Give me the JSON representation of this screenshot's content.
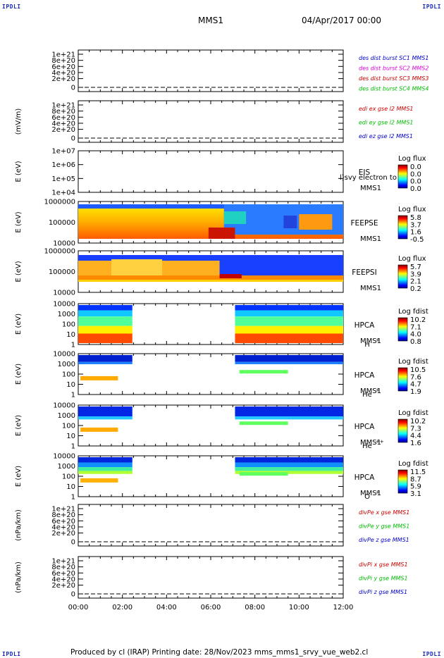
{
  "corners": {
    "tl": "IPDLI",
    "tr": "IPDLI",
    "bl": "IPDLI",
    "br": "IPDLI"
  },
  "header": {
    "spacecraft": "MMS1",
    "date": "04/Apr/2017 00:00"
  },
  "footer": "Produced by cl (IRAP)   Printing date: 28/Nov/2023   mms_mms1_srvy_vue_web2.cl",
  "chart_data": [
    {
      "type": "line",
      "panel": "des-dist-burst",
      "ylabel": "",
      "ytick_labels": [
        "1e+21",
        "8e+20",
        "6e+20",
        "4e+20",
        "2e+20",
        "0"
      ],
      "series": [
        {
          "name": "des dist burst SC1 MMS1",
          "color": "#0000cc"
        },
        {
          "name": "des dist burst SC2 MMS2",
          "color": "#dd00dd"
        },
        {
          "name": "des dist burst SC3 MMS3",
          "color": "#cc0000"
        },
        {
          "name": "des dist burst SC4 MMS4",
          "color": "#00bb00"
        }
      ]
    },
    {
      "type": "line",
      "panel": "edi",
      "ylabel": "(mV/m)",
      "ytick_labels": [
        "1e+21",
        "8e+20",
        "6e+20",
        "4e+20",
        "2e+20",
        "0"
      ],
      "series": [
        {
          "name": "edi ex gse l2 MMS1",
          "color": "#cc0000"
        },
        {
          "name": "edi ey gse l2 MMS1",
          "color": "#00bb00"
        },
        {
          "name": "edi ez gse l2 MMS1",
          "color": "#0000cc"
        }
      ]
    },
    {
      "type": "heatmap",
      "panel": "eis",
      "ylabel": "E (eV)",
      "ytick_labels": [
        "1e+07",
        "1e+06",
        "1e+05",
        "1e+04"
      ],
      "instrument": "EIS",
      "sub": "MMS1",
      "overlay": "l)svy electron to",
      "cbar_title": "Log flux",
      "cbar_ticks": [
        "0.0",
        "0.0",
        "0.0",
        "0.0"
      ]
    },
    {
      "type": "heatmap",
      "panel": "feepse",
      "ylabel": "E (eV)",
      "ytick_labels": [
        "1000000",
        "100000",
        "10000"
      ],
      "instrument": "FEEPSE",
      "sub": "MMS1",
      "cbar_title": "Log flux",
      "cbar_ticks": [
        "5.8",
        "3.7",
        "1.6",
        "-0.5"
      ]
    },
    {
      "type": "heatmap",
      "panel": "feepsi",
      "ylabel": "E (eV)",
      "ytick_labels": [
        "1000000",
        "100000",
        "10000"
      ],
      "instrument": "FEEPSI",
      "sub": "MMS1",
      "cbar_title": "Log flux",
      "cbar_ticks": [
        "5.7",
        "3.9",
        "2.1",
        "0.2"
      ]
    },
    {
      "type": "heatmap",
      "panel": "hpca-h",
      "ylabel": "E (eV)",
      "ytick_labels": [
        "10000",
        "1000",
        "100",
        "10",
        "1"
      ],
      "instrument": "HPCA",
      "sub": "MMS1",
      "species": "H",
      "charge": "+",
      "cbar_title": "Log fdist",
      "cbar_ticks": [
        "10.2",
        "7.1",
        "4.0",
        "0.8"
      ]
    },
    {
      "type": "heatmap",
      "panel": "hpca-he",
      "ylabel": "E (eV)",
      "ytick_labels": [
        "10000",
        "1000",
        "100",
        "10",
        "1"
      ],
      "instrument": "HPCA",
      "sub": "MMS1",
      "species": "He",
      "charge": "+",
      "cbar_title": "Log fdist",
      "cbar_ticks": [
        "10.5",
        "7.6",
        "4.7",
        "1.9"
      ]
    },
    {
      "type": "heatmap",
      "panel": "hpca-he2",
      "ylabel": "E (eV)",
      "ytick_labels": [
        "10000",
        "1000",
        "100",
        "10",
        "1"
      ],
      "instrument": "HPCA",
      "sub": "MMS1",
      "species": "He",
      "charge": "++",
      "cbar_title": "Log fdist",
      "cbar_ticks": [
        "10.2",
        "7.3",
        "4.4",
        "1.6"
      ]
    },
    {
      "type": "heatmap",
      "panel": "hpca-o",
      "ylabel": "E (eV)",
      "ytick_labels": [
        "10000",
        "1000",
        "100",
        "10",
        "1"
      ],
      "instrument": "HPCA",
      "sub": "MMS1",
      "species": "O",
      "charge": "+",
      "cbar_title": "Log fdist",
      "cbar_ticks": [
        "11.5",
        "8.7",
        "5.9",
        "3.1"
      ]
    },
    {
      "type": "line",
      "panel": "divpe",
      "ylabel": "(nPa/km)",
      "ytick_labels": [
        "1e+21",
        "8e+20",
        "6e+20",
        "4e+20",
        "2e+20",
        "0"
      ],
      "series": [
        {
          "name": "divPe x gse MMS1",
          "color": "#cc0000"
        },
        {
          "name": "divPe y gse MMS1",
          "color": "#00bb00"
        },
        {
          "name": "divPe z gse MMS1",
          "color": "#0000cc"
        }
      ]
    },
    {
      "type": "line",
      "panel": "divpi",
      "ylabel": "(nPa/km)",
      "ytick_labels": [
        "1e+21",
        "8e+20",
        "6e+20",
        "4e+20",
        "2e+20",
        "0"
      ],
      "series": [
        {
          "name": "divPi x gse MMS1",
          "color": "#cc0000"
        },
        {
          "name": "divPi y gse MMS1",
          "color": "#00bb00"
        },
        {
          "name": "divPi z gse MMS1",
          "color": "#0000cc"
        }
      ]
    }
  ],
  "time_axis": {
    "start_hours": 0,
    "end_hours": 12,
    "tick_labels": [
      "00:00",
      "02:00",
      "04:00",
      "06:00",
      "08:00",
      "10:00",
      "12:00"
    ],
    "hpca_gap_hours": [
      2.45,
      7.1
    ]
  }
}
